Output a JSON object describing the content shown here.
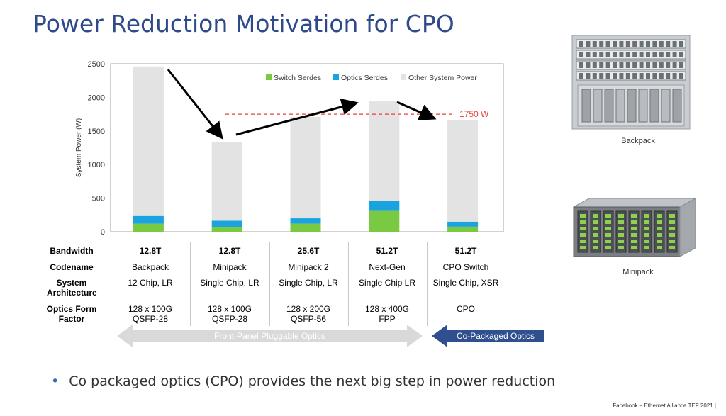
{
  "title": "Power Reduction Motivation for CPO",
  "chart_data": {
    "type": "bar",
    "stacked": true,
    "categories": [
      "12.8T Backpack",
      "12.8T Minipack",
      "25.6T Minipack 2",
      "51.2T Next-Gen",
      "51.2T CPO Switch"
    ],
    "ylabel": "System Power (W)",
    "ylim": [
      0,
      2500
    ],
    "yticks": [
      0,
      500,
      1000,
      1500,
      2000,
      2500
    ],
    "series": [
      {
        "name": "Switch Serdes",
        "color": "#7ac943",
        "values": [
          120,
          70,
          120,
          310,
          75
        ]
      },
      {
        "name": "Optics Serdes",
        "color": "#1ba3e0",
        "values": [
          115,
          95,
          80,
          150,
          75
        ]
      },
      {
        "name": "Other System Power",
        "color": "#e3e3e3",
        "values": [
          2225,
          1165,
          1510,
          1480,
          1515
        ]
      }
    ],
    "reference_line": {
      "value": 1750,
      "label": "1750 W",
      "color": "#e8403a"
    },
    "legend_position": "top-right"
  },
  "table": {
    "row_labels": [
      "Bandwidth",
      "Codename",
      "System Architecture",
      "Optics Form Factor"
    ],
    "columns": [
      {
        "bandwidth": "12.8T",
        "codename": "Backpack",
        "architecture": "12 Chip, LR",
        "form_factor": "128 x 100G QSFP-28"
      },
      {
        "bandwidth": "12.8T",
        "codename": "Minipack",
        "architecture": "Single Chip, LR",
        "form_factor": "128 x 100G QSFP-28"
      },
      {
        "bandwidth": "25.6T",
        "codename": "Minipack 2",
        "architecture": "Single Chip, LR",
        "form_factor": "128 x 200G QSFP-56"
      },
      {
        "bandwidth": "51.2T",
        "codename": "Next-Gen",
        "architecture": "Single Chip LR",
        "form_factor": "128 x 400G FPP"
      },
      {
        "bandwidth": "51.2T",
        "codename": "CPO Switch",
        "architecture": "Single Chip, XSR",
        "form_factor": "CPO"
      }
    ]
  },
  "arrows": {
    "pluggable": "Front-Panel Pluggable Optics",
    "cpo": "Co-Packaged Optics"
  },
  "photos": {
    "top_caption": "Backpack",
    "bottom_caption": "Minipack"
  },
  "bullet": "Co packaged optics (CPO) provides the next big step in power reduction",
  "footer": "Facebook – Ethernet Alliance TEF 2021   |"
}
